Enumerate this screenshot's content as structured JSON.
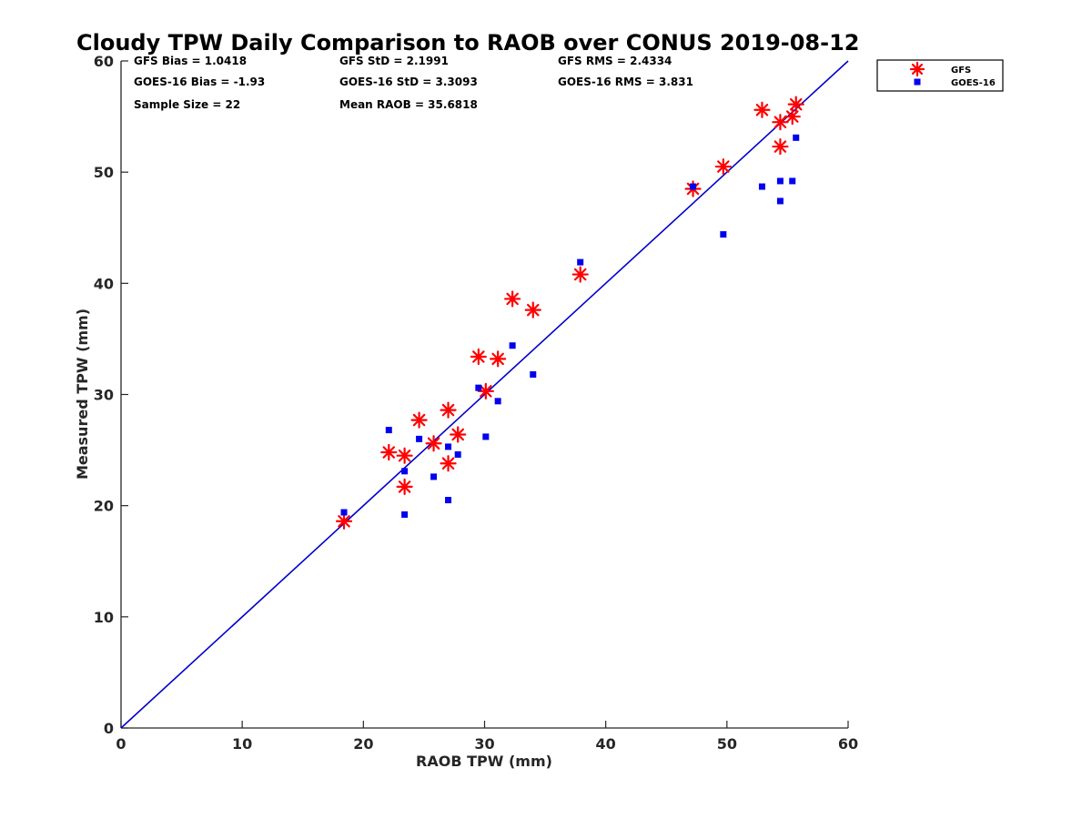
{
  "chart_data": {
    "type": "scatter",
    "title": "Cloudy TPW Daily Comparison to RAOB over CONUS 2019-08-12",
    "xlabel": "RAOB TPW (mm)",
    "ylabel": "Measured TPW (mm)",
    "xlim": [
      0,
      60
    ],
    "ylim": [
      0,
      60
    ],
    "xticks": [
      "0",
      "10",
      "20",
      "30",
      "40",
      "50",
      "60"
    ],
    "yticks": [
      "0",
      "10",
      "20",
      "30",
      "40",
      "50",
      "60"
    ],
    "grid": false,
    "legend_position": "outside-top-right",
    "reference_line": {
      "x": [
        0,
        60
      ],
      "y": [
        0,
        60
      ],
      "color": "#0000cc"
    },
    "stats": [
      {
        "name": "gfs-bias",
        "text": "GFS Bias = 1.0418"
      },
      {
        "name": "gfs-std",
        "text": "GFS StD = 2.1991"
      },
      {
        "name": "gfs-rms",
        "text": "GFS RMS = 2.4334"
      },
      {
        "name": "goes-bias",
        "text": "GOES-16 Bias = -1.93"
      },
      {
        "name": "goes-std",
        "text": "GOES-16 StD = 3.3093"
      },
      {
        "name": "goes-rms",
        "text": "GOES-16 RMS = 3.831"
      },
      {
        "name": "sample-size",
        "text": "Sample Size = 22"
      },
      {
        "name": "mean-raob",
        "text": "Mean RAOB = 35.6818"
      }
    ],
    "series": [
      {
        "name": "GFS",
        "marker": "asterisk",
        "color": "#ff0000",
        "points": [
          [
            18.4,
            18.6
          ],
          [
            22.1,
            24.8
          ],
          [
            23.4,
            24.5
          ],
          [
            23.4,
            21.7
          ],
          [
            24.6,
            27.7
          ],
          [
            25.8,
            25.6
          ],
          [
            27.0,
            28.6
          ],
          [
            27.0,
            23.8
          ],
          [
            27.8,
            26.4
          ],
          [
            29.5,
            33.4
          ],
          [
            30.1,
            30.3
          ],
          [
            31.1,
            33.2
          ],
          [
            32.3,
            38.6
          ],
          [
            34.0,
            37.6
          ],
          [
            37.9,
            40.8
          ],
          [
            47.2,
            48.5
          ],
          [
            49.7,
            50.5
          ],
          [
            52.9,
            55.6
          ],
          [
            54.4,
            54.5
          ],
          [
            54.4,
            52.3
          ],
          [
            55.4,
            55.0
          ],
          [
            55.7,
            56.1
          ]
        ]
      },
      {
        "name": "GOES-16",
        "marker": "square",
        "color": "#0000ee",
        "points": [
          [
            18.4,
            19.4
          ],
          [
            22.1,
            26.8
          ],
          [
            23.4,
            23.1
          ],
          [
            23.4,
            19.2
          ],
          [
            24.6,
            26.0
          ],
          [
            25.8,
            22.6
          ],
          [
            27.0,
            25.3
          ],
          [
            27.0,
            20.5
          ],
          [
            27.8,
            24.6
          ],
          [
            29.5,
            30.6
          ],
          [
            30.1,
            26.2
          ],
          [
            31.1,
            29.4
          ],
          [
            32.3,
            34.4
          ],
          [
            34.0,
            31.8
          ],
          [
            37.9,
            41.9
          ],
          [
            47.2,
            48.7
          ],
          [
            49.7,
            44.4
          ],
          [
            52.9,
            48.7
          ],
          [
            54.4,
            49.2
          ],
          [
            54.4,
            47.4
          ],
          [
            55.4,
            49.2
          ],
          [
            55.7,
            53.1
          ]
        ]
      }
    ]
  }
}
